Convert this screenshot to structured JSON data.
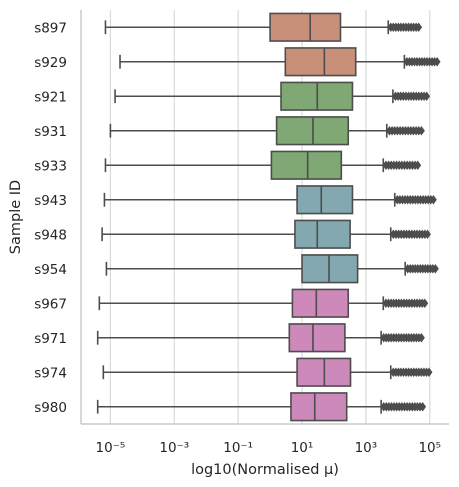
{
  "chart_data": {
    "type": "box",
    "orientation": "horizontal",
    "xlabel": "log10(Normalised μ)",
    "ylabel": "Sample ID",
    "x_scale": "log",
    "xlim": [
      1.2e-06,
      400000.0
    ],
    "x_ticks": [
      1e-05,
      0.001,
      0.1,
      10,
      1000,
      100000
    ],
    "x_tick_labels": [
      "10⁻⁵",
      "10⁻³",
      "10⁻¹",
      "10¹",
      "10³",
      "10⁵"
    ],
    "grid": "vertical",
    "outlier_marker": "diamond",
    "categories": [
      "s897",
      "s929",
      "s921",
      "s931",
      "s933",
      "s943",
      "s948",
      "s954",
      "s967",
      "s971",
      "s974",
      "s980"
    ],
    "boxes": [
      {
        "id": "s897",
        "color": "#c89078",
        "whisker_low": 7e-06,
        "q1": 1.0,
        "median": 18,
        "q3": 160,
        "whisker_high": 5000,
        "outlier_max": 45000
      },
      {
        "id": "s929",
        "color": "#c89078",
        "whisker_low": 2e-05,
        "q1": 3.0,
        "median": 50,
        "q3": 480,
        "whisker_high": 16000,
        "outlier_max": 170000
      },
      {
        "id": "s921",
        "color": "#7fa875",
        "whisker_low": 1.4e-05,
        "q1": 2.2,
        "median": 30,
        "q3": 380,
        "whisker_high": 7000,
        "outlier_max": 80000
      },
      {
        "id": "s931",
        "color": "#7fa875",
        "whisker_low": 1e-05,
        "q1": 1.6,
        "median": 22,
        "q3": 280,
        "whisker_high": 4500,
        "outlier_max": 55000
      },
      {
        "id": "s933",
        "color": "#7fa875",
        "whisker_low": 7e-06,
        "q1": 1.1,
        "median": 15,
        "q3": 170,
        "whisker_high": 3500,
        "outlier_max": 42000
      },
      {
        "id": "s943",
        "color": "#84a8b0",
        "whisker_low": 6.5e-06,
        "q1": 7,
        "median": 40,
        "q3": 380,
        "whisker_high": 8000,
        "outlier_max": 130000
      },
      {
        "id": "s948",
        "color": "#84a8b0",
        "whisker_low": 5.5e-06,
        "q1": 6,
        "median": 30,
        "q3": 320,
        "whisker_high": 6000,
        "outlier_max": 85000
      },
      {
        "id": "s954",
        "color": "#84a8b0",
        "whisker_low": 7.5e-06,
        "q1": 10,
        "median": 70,
        "q3": 550,
        "whisker_high": 17000,
        "outlier_max": 150000
      },
      {
        "id": "s967",
        "color": "#cc89b9",
        "whisker_low": 4.5e-06,
        "q1": 5,
        "median": 28,
        "q3": 280,
        "whisker_high": 3500,
        "outlier_max": 70000
      },
      {
        "id": "s971",
        "color": "#cc89b9",
        "whisker_low": 4e-06,
        "q1": 4,
        "median": 22,
        "q3": 220,
        "whisker_high": 3000,
        "outlier_max": 55000
      },
      {
        "id": "s974",
        "color": "#cc89b9",
        "whisker_low": 6e-06,
        "q1": 7,
        "median": 50,
        "q3": 330,
        "whisker_high": 6000,
        "outlier_max": 95000
      },
      {
        "id": "s980",
        "color": "#cc89b9",
        "whisker_low": 4e-06,
        "q1": 4.5,
        "median": 25,
        "q3": 250,
        "whisker_high": 3000,
        "outlier_max": 60000
      }
    ]
  }
}
